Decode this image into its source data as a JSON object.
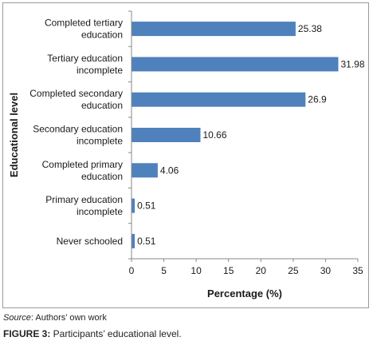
{
  "chart_data": {
    "type": "bar",
    "orientation": "horizontal",
    "categories": [
      [
        "Completed tertiary",
        "education"
      ],
      [
        "Tertiary education",
        "incomplete"
      ],
      [
        "Completed secondary",
        "education"
      ],
      [
        "Secondary education",
        "incomplete"
      ],
      [
        "Completed primary",
        "education"
      ],
      [
        "Primary education",
        "incomplete"
      ],
      [
        "Never schooled"
      ]
    ],
    "values": [
      25.38,
      31.98,
      26.9,
      10.66,
      4.06,
      0.51,
      0.51
    ],
    "value_labels": [
      "25.38",
      "31.98",
      "26.9",
      "10.66",
      "4.06",
      "0.51",
      "0.51"
    ],
    "xlabel": "Percentage (%)",
    "ylabel": "Educational level",
    "xlim": [
      0,
      35
    ],
    "xticks": [
      0,
      5,
      10,
      15,
      20,
      25,
      30,
      35
    ],
    "grid": false,
    "bar_color": "#4f81bd"
  },
  "source": {
    "key": "Source",
    "text": ": Authors’ own work"
  },
  "caption": {
    "key": "FIGURE 3:",
    "text": " Participants’ educational level."
  }
}
